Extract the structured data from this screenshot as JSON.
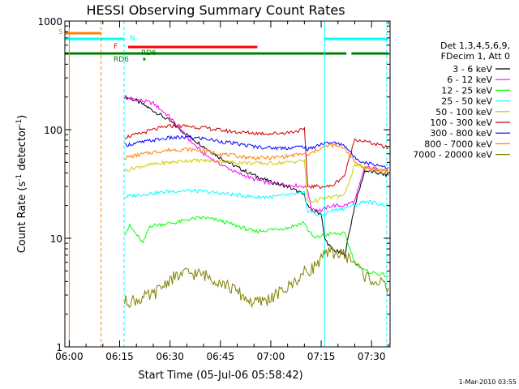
{
  "chart_data": {
    "type": "line",
    "title": "HESSI Observing Summary Count Rates",
    "xlabel": "Start Time (05-Jul-06 05:58:42)",
    "ylabel": "Count Rate (s",
    "ylabel_sup1": "-1",
    "ylabel_mid": " detector",
    "ylabel_sup2": "-1",
    "ylabel_end": ")",
    "y_scale": "log",
    "ylim": [
      1,
      1000
    ],
    "xlim": [
      "05:58:42",
      "07:35:30"
    ],
    "x_ticks": [
      "06:00",
      "06:15",
      "06:30",
      "06:45",
      "07:00",
      "07:15",
      "07:30"
    ],
    "y_ticks": [
      "1",
      "10",
      "100",
      "1000"
    ],
    "grid": false,
    "legend_position": "right",
    "legend_header": [
      "Det 1,3,4,5,6,9,",
      "FDecim 1, Att 0"
    ],
    "footer": "1-Mar-2010 03:55",
    "flag_labels": [
      "S",
      "N",
      "F",
      "RD6",
      "RD6"
    ],
    "flags": [
      {
        "label": "S",
        "color": "#ff8000",
        "segments": [
          [
            "05:58:42",
            "06:09:30"
          ]
        ]
      },
      {
        "label": "N",
        "color": "#00ffff",
        "segments": [
          [
            "05:58:42",
            "06:16:20"
          ],
          [
            "07:16:00",
            "07:35:00"
          ]
        ]
      },
      {
        "label": "F",
        "color": "#ff0000",
        "segments": [
          [
            "06:17:30",
            "06:56:00"
          ]
        ]
      },
      {
        "label": "RD6",
        "color": "#008000",
        "segments": [
          [
            "05:58:42",
            "07:12:00"
          ],
          [
            "07:12:00",
            "07:22:30"
          ],
          [
            "07:24:00",
            "07:35:00"
          ]
        ]
      },
      {
        "label": "RD6",
        "color": "#008000",
        "segments": [
          [
            "06:22:00",
            "06:22:40"
          ]
        ]
      }
    ],
    "series": [
      {
        "name": "3 - 6 keV",
        "color": "#000000",
        "points": [
          [
            "06:16:30",
            200
          ],
          [
            "06:20",
            185
          ],
          [
            "06:25",
            150
          ],
          [
            "06:30",
            120
          ],
          [
            "06:35",
            90
          ],
          [
            "06:40",
            70
          ],
          [
            "06:45",
            55
          ],
          [
            "06:50",
            45
          ],
          [
            "06:55",
            38
          ],
          [
            "07:00",
            33
          ],
          [
            "07:05",
            30
          ],
          [
            "07:10",
            25
          ],
          [
            "07:11",
            20
          ],
          [
            "07:12",
            18
          ],
          [
            "07:15",
            17
          ],
          [
            "07:16",
            10
          ],
          [
            "07:18",
            8
          ],
          [
            "07:22",
            7
          ],
          [
            "07:25",
            20
          ],
          [
            "07:28",
            42
          ],
          [
            "07:35",
            38
          ]
        ]
      },
      {
        "name": "6 - 12 keV",
        "color": "#ff00ff",
        "points": [
          [
            "06:16:30",
            200
          ],
          [
            "06:20",
            190
          ],
          [
            "06:25",
            175
          ],
          [
            "06:30",
            130
          ],
          [
            "06:35",
            85
          ],
          [
            "06:40",
            60
          ],
          [
            "06:45",
            48
          ],
          [
            "06:50",
            40
          ],
          [
            "06:55",
            35
          ],
          [
            "07:00",
            32
          ],
          [
            "07:05",
            31
          ],
          [
            "07:10",
            30
          ],
          [
            "07:11",
            28
          ],
          [
            "07:12",
            19
          ],
          [
            "07:15",
            18
          ],
          [
            "07:18",
            20
          ],
          [
            "07:22",
            20
          ],
          [
            "07:25",
            22
          ],
          [
            "07:28",
            45
          ],
          [
            "07:35",
            42
          ]
        ]
      },
      {
        "name": "12 - 25 keV",
        "color": "#00ff00",
        "points": [
          [
            "06:16:30",
            11
          ],
          [
            "06:18",
            13
          ],
          [
            "06:22",
            9
          ],
          [
            "06:24",
            13
          ],
          [
            "06:28",
            13.5
          ],
          [
            "06:32",
            14
          ],
          [
            "06:36",
            15
          ],
          [
            "06:40",
            15.5
          ],
          [
            "06:45",
            14.5
          ],
          [
            "06:50",
            13
          ],
          [
            "06:55",
            11.5
          ],
          [
            "07:00",
            12
          ],
          [
            "07:05",
            12.5
          ],
          [
            "07:10",
            14
          ],
          [
            "07:11",
            12
          ],
          [
            "07:13",
            10
          ],
          [
            "07:15",
            10.5
          ],
          [
            "07:18",
            11
          ],
          [
            "07:22",
            11
          ],
          [
            "07:25",
            6
          ],
          [
            "07:28",
            5
          ],
          [
            "07:35",
            4.5
          ]
        ]
      },
      {
        "name": "25 - 50 keV",
        "color": "#00ffff",
        "points": [
          [
            "06:16:30",
            24
          ],
          [
            "06:20",
            25
          ],
          [
            "06:25",
            26
          ],
          [
            "06:30",
            27
          ],
          [
            "06:35",
            27.5
          ],
          [
            "06:40",
            27
          ],
          [
            "06:45",
            26
          ],
          [
            "06:50",
            25
          ],
          [
            "06:55",
            24
          ],
          [
            "07:00",
            24
          ],
          [
            "07:05",
            25
          ],
          [
            "07:10",
            26
          ],
          [
            "07:11",
            18
          ],
          [
            "07:13",
            17
          ],
          [
            "07:15",
            16
          ],
          [
            "07:18",
            18
          ],
          [
            "07:22",
            19
          ],
          [
            "07:25",
            20
          ],
          [
            "07:28",
            22
          ],
          [
            "07:35",
            20
          ]
        ]
      },
      {
        "name": "50 - 100 keV",
        "color": "#cccc00",
        "points": [
          [
            "06:16:30",
            42
          ],
          [
            "06:20",
            45
          ],
          [
            "06:25",
            48
          ],
          [
            "06:30",
            50
          ],
          [
            "06:35",
            52
          ],
          [
            "06:40",
            52
          ],
          [
            "06:45",
            51
          ],
          [
            "06:50",
            50
          ],
          [
            "06:55",
            49
          ],
          [
            "07:00",
            49
          ],
          [
            "07:05",
            50
          ],
          [
            "07:10",
            52
          ],
          [
            "07:11",
            22
          ],
          [
            "07:13",
            22
          ],
          [
            "07:15",
            23
          ],
          [
            "07:18",
            24
          ],
          [
            "07:22",
            25
          ],
          [
            "07:25",
            48
          ],
          [
            "07:28",
            44
          ],
          [
            "07:35",
            40
          ]
        ]
      },
      {
        "name": "100 - 300 keV",
        "color": "#cc0000",
        "points": [
          [
            "06:16:30",
            85
          ],
          [
            "06:20",
            90
          ],
          [
            "06:25",
            100
          ],
          [
            "06:30",
            108
          ],
          [
            "06:35",
            108
          ],
          [
            "06:40",
            104
          ],
          [
            "06:45",
            99
          ],
          [
            "06:50",
            95
          ],
          [
            "06:55",
            93
          ],
          [
            "07:00",
            92
          ],
          [
            "07:05",
            94
          ],
          [
            "07:10",
            100
          ],
          [
            "07:11",
            30
          ],
          [
            "07:13",
            30
          ],
          [
            "07:15",
            30
          ],
          [
            "07:18",
            30
          ],
          [
            "07:22",
            38
          ],
          [
            "07:25",
            82
          ],
          [
            "07:28",
            78
          ],
          [
            "07:35",
            68
          ]
        ]
      },
      {
        "name": "300 - 800 keV",
        "color": "#0000ff",
        "points": [
          [
            "06:16:30",
            72
          ],
          [
            "06:20",
            75
          ],
          [
            "06:25",
            80
          ],
          [
            "06:30",
            84
          ],
          [
            "06:35",
            85
          ],
          [
            "06:40",
            83
          ],
          [
            "06:45",
            78
          ],
          [
            "06:50",
            74
          ],
          [
            "06:55",
            70
          ],
          [
            "07:00",
            68
          ],
          [
            "07:05",
            68
          ],
          [
            "07:10",
            70
          ],
          [
            "07:11",
            65
          ],
          [
            "07:13",
            70
          ],
          [
            "07:15",
            74
          ],
          [
            "07:18",
            76
          ],
          [
            "07:22",
            72
          ],
          [
            "07:25",
            55
          ],
          [
            "07:28",
            50
          ],
          [
            "07:35",
            45
          ]
        ]
      },
      {
        "name": "800 - 7000 keV",
        "color": "#ff8000",
        "points": [
          [
            "06:16:30",
            55
          ],
          [
            "06:20",
            58
          ],
          [
            "06:25",
            62
          ],
          [
            "06:30",
            65
          ],
          [
            "06:35",
            66
          ],
          [
            "06:40",
            64
          ],
          [
            "06:45",
            60
          ],
          [
            "06:50",
            57
          ],
          [
            "06:55",
            55
          ],
          [
            "07:00",
            55
          ],
          [
            "07:05",
            57
          ],
          [
            "07:10",
            60
          ],
          [
            "07:11",
            58
          ],
          [
            "07:13",
            63
          ],
          [
            "07:15",
            68
          ],
          [
            "07:18",
            72
          ],
          [
            "07:22",
            68
          ],
          [
            "07:25",
            50
          ],
          [
            "07:28",
            45
          ],
          [
            "07:35",
            42
          ]
        ]
      },
      {
        "name": "7000 - 20000 keV",
        "color": "#808000",
        "points": [
          [
            "06:16:30",
            2.6
          ],
          [
            "06:20",
            2.7
          ],
          [
            "06:25",
            3.0
          ],
          [
            "06:30",
            4.2
          ],
          [
            "06:35",
            4.8
          ],
          [
            "06:40",
            4.6
          ],
          [
            "06:45",
            4.0
          ],
          [
            "06:50",
            3.2
          ],
          [
            "06:55",
            2.5
          ],
          [
            "07:00",
            2.8
          ],
          [
            "07:05",
            3.5
          ],
          [
            "07:10",
            4.8
          ],
          [
            "07:13",
            5.5
          ],
          [
            "07:15",
            6.5
          ],
          [
            "07:18",
            7.5
          ],
          [
            "07:22",
            7.0
          ],
          [
            "07:25",
            6.0
          ],
          [
            "07:28",
            4.5
          ],
          [
            "07:35",
            3.5
          ]
        ]
      }
    ]
  }
}
